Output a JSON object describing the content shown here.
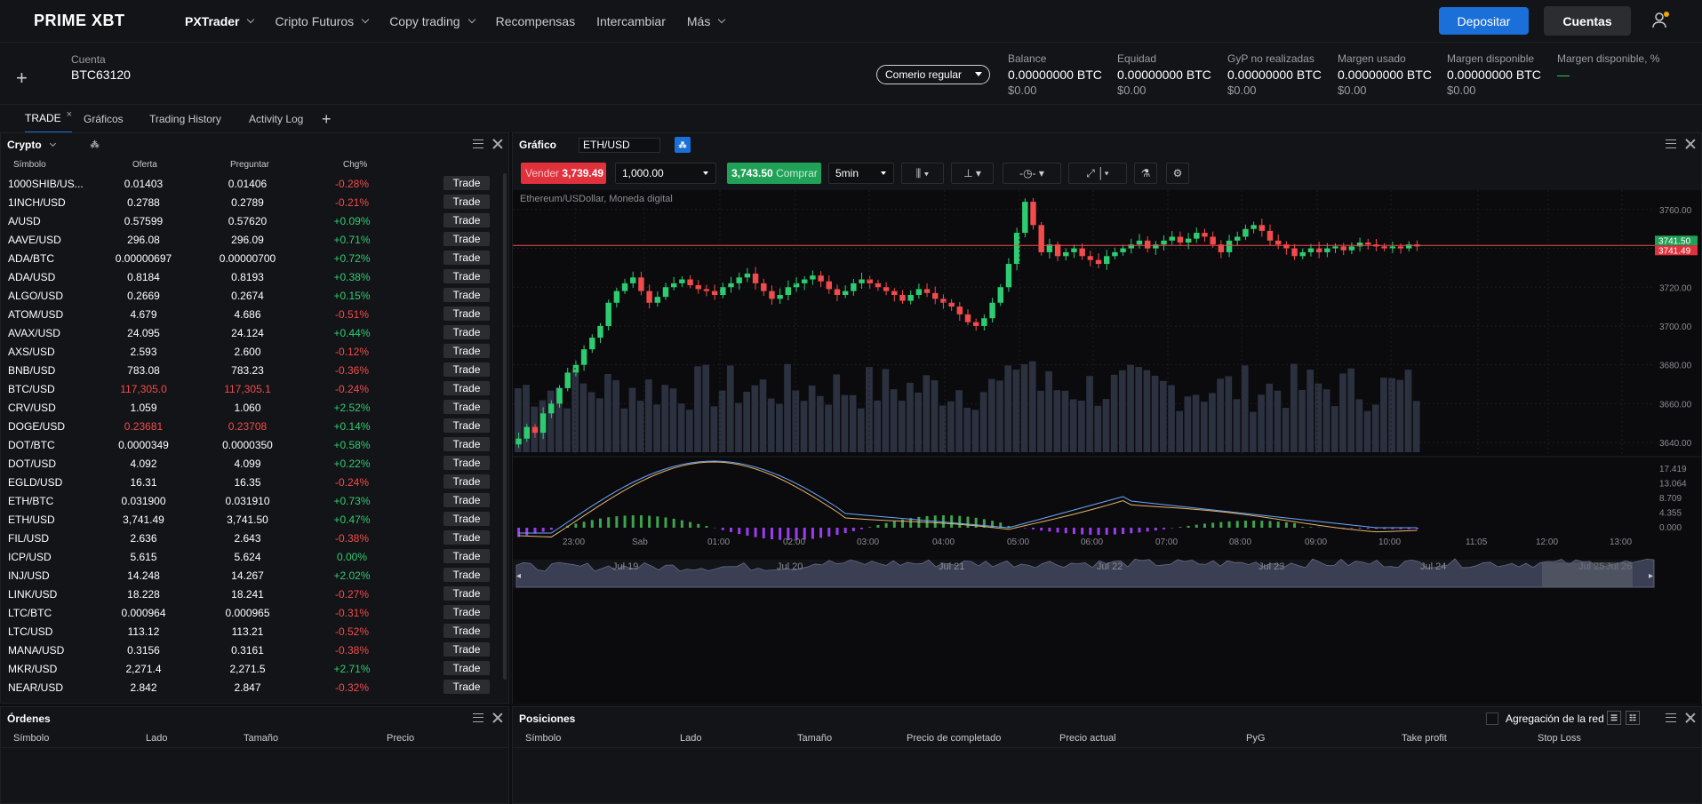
{
  "brand": {
    "logo": "PRIME XBT"
  },
  "nav": {
    "items": [
      {
        "label": "PXTrader",
        "active": true,
        "dropdown": true
      },
      {
        "label": "Cripto Futuros",
        "dropdown": true
      },
      {
        "label": "Copy trading",
        "dropdown": true
      },
      {
        "label": "Recompensas",
        "dropdown": false
      },
      {
        "label": "Intercambiar",
        "dropdown": false
      },
      {
        "label": "Más",
        "dropdown": true
      }
    ],
    "deposit": "Depositar",
    "accounts": "Cuentas"
  },
  "account": {
    "label": "Cuenta",
    "id": "BTC63120",
    "mode": "Comerio regular",
    "stats": [
      {
        "label": "Balance",
        "value": "0.00000000 BTC",
        "usd": "$0.00"
      },
      {
        "label": "Equidad",
        "value": "0.00000000 BTC",
        "usd": "$0.00"
      },
      {
        "label": "GyP no realizadas",
        "value": "0.00000000 BTC",
        "usd": "$0.00"
      },
      {
        "label": "Margen usado",
        "value": "0.00000000 BTC",
        "usd": "$0.00"
      },
      {
        "label": "Margen disponible",
        "value": "0.00000000 BTC",
        "usd": "$0.00"
      },
      {
        "label": "Margen disponible, %",
        "value": "—",
        "usd": ""
      }
    ]
  },
  "tabs": [
    {
      "label": "TRADE",
      "active": true
    },
    {
      "label": "Gráficos"
    },
    {
      "label": "Trading History"
    },
    {
      "label": "Activity Log"
    }
  ],
  "watchlist": {
    "title": "Crypto",
    "columns": [
      "Símbolo",
      "Oferta",
      "Preguntar",
      "Chg%"
    ],
    "trade_label": "Trade",
    "rows": [
      [
        "1000SHIB/US...",
        "0.01403",
        "0.01406",
        "-0.28%",
        "n"
      ],
      [
        "1INCH/USD",
        "0.2788",
        "0.2789",
        "-0.21%",
        "n"
      ],
      [
        "A/USD",
        "0.57599",
        "0.57620",
        "+0.09%",
        "p"
      ],
      [
        "AAVE/USD",
        "296.08",
        "296.09",
        "+0.71%",
        "p"
      ],
      [
        "ADA/BTC",
        "0.00000697",
        "0.00000700",
        "+0.72%",
        "p"
      ],
      [
        "ADA/USD",
        "0.8184",
        "0.8193",
        "+0.38%",
        "p"
      ],
      [
        "ALGO/USD",
        "0.2669",
        "0.2674",
        "+0.15%",
        "p"
      ],
      [
        "ATOM/USD",
        "4.679",
        "4.686",
        "-0.51%",
        "n"
      ],
      [
        "AVAX/USD",
        "24.095",
        "24.124",
        "+0.44%",
        "p"
      ],
      [
        "AXS/USD",
        "2.593",
        "2.600",
        "-0.12%",
        "n"
      ],
      [
        "BNB/USD",
        "783.08",
        "783.23",
        "-0.36%",
        "n"
      ],
      [
        "BTC/USD",
        "117,305.0",
        "117,305.1",
        "-0.24%",
        "n",
        "red"
      ],
      [
        "CRV/USD",
        "1.059",
        "1.060",
        "+2.52%",
        "p"
      ],
      [
        "DOGE/USD",
        "0.23681",
        "0.23708",
        "+0.14%",
        "p",
        "red"
      ],
      [
        "DOT/BTC",
        "0.0000349",
        "0.0000350",
        "+0.58%",
        "p"
      ],
      [
        "DOT/USD",
        "4.092",
        "4.099",
        "+0.22%",
        "p"
      ],
      [
        "EGLD/USD",
        "16.31",
        "16.35",
        "-0.24%",
        "n"
      ],
      [
        "ETH/BTC",
        "0.031900",
        "0.031910",
        "+0.73%",
        "p"
      ],
      [
        "ETH/USD",
        "3,741.49",
        "3,741.50",
        "+0.47%",
        "p"
      ],
      [
        "FIL/USD",
        "2.636",
        "2.643",
        "-0.38%",
        "n"
      ],
      [
        "ICP/USD",
        "5.615",
        "5.624",
        "0.00%",
        "p"
      ],
      [
        "INJ/USD",
        "14.248",
        "14.267",
        "+2.02%",
        "p"
      ],
      [
        "LINK/USD",
        "18.228",
        "18.241",
        "-0.27%",
        "n"
      ],
      [
        "LTC/BTC",
        "0.000964",
        "0.000965",
        "-0.31%",
        "n"
      ],
      [
        "LTC/USD",
        "113.12",
        "113.21",
        "-0.52%",
        "n"
      ],
      [
        "MANA/USD",
        "0.3156",
        "0.3161",
        "-0.38%",
        "n"
      ],
      [
        "MKR/USD",
        "2,271.4",
        "2,271.5",
        "+2.71%",
        "p"
      ],
      [
        "NEAR/USD",
        "2.842",
        "2.847",
        "-0.32%",
        "n"
      ]
    ]
  },
  "chart": {
    "title": "Gráfico",
    "symbol": "ETH/USD",
    "sell_label": "Vender",
    "sell_price": "3,739.49",
    "buy_label": "Comprar",
    "buy_price": "3,743.50",
    "qty": "1,000.00",
    "interval": "5min",
    "instrument_desc": "Ethereum/USDollar, Moneda digital",
    "price_ask_tag": "3741.50",
    "price_bid_tag": "3741.49",
    "x_ticks": [
      "23:00",
      "Sab",
      "01:00",
      "02:00",
      "03:00",
      "04:00",
      "05:00",
      "06:00",
      "07:00",
      "08:00",
      "09:00",
      "10:00",
      "11:05",
      "12:00",
      "13:00"
    ],
    "y_ticks": [
      "3760.00",
      "3740.00",
      "3720.00",
      "3700.00",
      "3680.00",
      "3660.00",
      "3640.00"
    ],
    "macd_ticks": [
      "17.419",
      "13.064",
      "8.709",
      "4.355",
      "0.000"
    ],
    "nav_labels": [
      "Jul 19",
      "Jul 20",
      "Jul 21",
      "Jul 22",
      "Jul 23",
      "Jul 24",
      "Jul 25",
      "Jul 26"
    ]
  },
  "chart_data": {
    "type": "candlestick",
    "symbol": "ETH/USD",
    "ylim": [
      3635,
      3770
    ],
    "last_price": 3741.49,
    "close": [
      3642,
      3648,
      3645,
      3655,
      3660,
      3668,
      3676,
      3680,
      3688,
      3694,
      3700,
      3712,
      3718,
      3722,
      3725,
      3718,
      3712,
      3715,
      3720,
      3722,
      3724,
      3721,
      3719,
      3718,
      3716,
      3720,
      3722,
      3725,
      3727,
      3722,
      3718,
      3714,
      3716,
      3720,
      3722,
      3724,
      3726,
      3723,
      3719,
      3716,
      3718,
      3722,
      3724,
      3722,
      3720,
      3718,
      3716,
      3713,
      3716,
      3719,
      3717,
      3714,
      3712,
      3710,
      3706,
      3702,
      3700,
      3704,
      3712,
      3720,
      3732,
      3748,
      3764,
      3752,
      3738,
      3742,
      3736,
      3738,
      3740,
      3736,
      3734,
      3732,
      3736,
      3738,
      3740,
      3742,
      3744,
      3740,
      3742,
      3744,
      3746,
      3743,
      3745,
      3748,
      3746,
      3742,
      3738,
      3744,
      3746,
      3750,
      3752,
      3749,
      3744,
      3742,
      3740,
      3736,
      3738,
      3740,
      3738,
      3740,
      3741,
      3739,
      3741,
      3743,
      3742,
      3741,
      3740,
      3741,
      3740,
      3742,
      3741
    ]
  },
  "orders": {
    "title": "Órdenes",
    "columns": [
      "Símbolo",
      "Lado",
      "Tamaño",
      "Precio"
    ]
  },
  "positions": {
    "title": "Posiciones",
    "agg_label": "Agregación de la red",
    "columns": [
      "Símbolo",
      "Lado",
      "Tamaño",
      "Precio de completado",
      "Precio actual",
      "PyG",
      "Take profit",
      "Stop Loss"
    ]
  },
  "colors": {
    "bg": "#0e0f11",
    "panel": "#131417",
    "accent": "#1a6fd8",
    "up": "#2ecc71",
    "down": "#f24b4b"
  }
}
